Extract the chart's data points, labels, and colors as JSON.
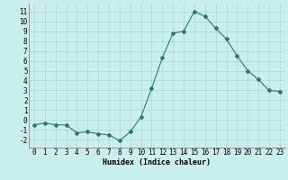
{
  "x": [
    0,
    1,
    2,
    3,
    4,
    5,
    6,
    7,
    8,
    9,
    10,
    11,
    12,
    13,
    14,
    15,
    16,
    17,
    18,
    19,
    20,
    21,
    22,
    23
  ],
  "y": [
    -0.5,
    -0.3,
    -0.5,
    -0.5,
    -1.3,
    -1.2,
    -1.4,
    -1.5,
    -2.1,
    -1.2,
    0.3,
    3.2,
    6.3,
    8.8,
    9.0,
    11.0,
    10.5,
    9.3,
    8.2,
    6.5,
    5.0,
    4.1,
    3.0,
    2.9
  ],
  "line_color": "#2a7a6a",
  "bg_color": "#c8eeee",
  "grid_color": "#a8d8d0",
  "xlabel": "Humidex (Indice chaleur)",
  "ylim": [
    -2.8,
    11.8
  ],
  "xlim": [
    -0.5,
    23.5
  ],
  "yticks": [
    -2,
    -1,
    0,
    1,
    2,
    3,
    4,
    5,
    6,
    7,
    8,
    9,
    10,
    11
  ],
  "xticks": [
    0,
    1,
    2,
    3,
    4,
    5,
    6,
    7,
    8,
    9,
    10,
    11,
    12,
    13,
    14,
    15,
    16,
    17,
    18,
    19,
    20,
    21,
    22,
    23
  ],
  "xlabel_fontsize": 6.0,
  "tick_fontsize": 5.5,
  "marker": "D",
  "marker_size": 2.0,
  "line_width": 0.8
}
